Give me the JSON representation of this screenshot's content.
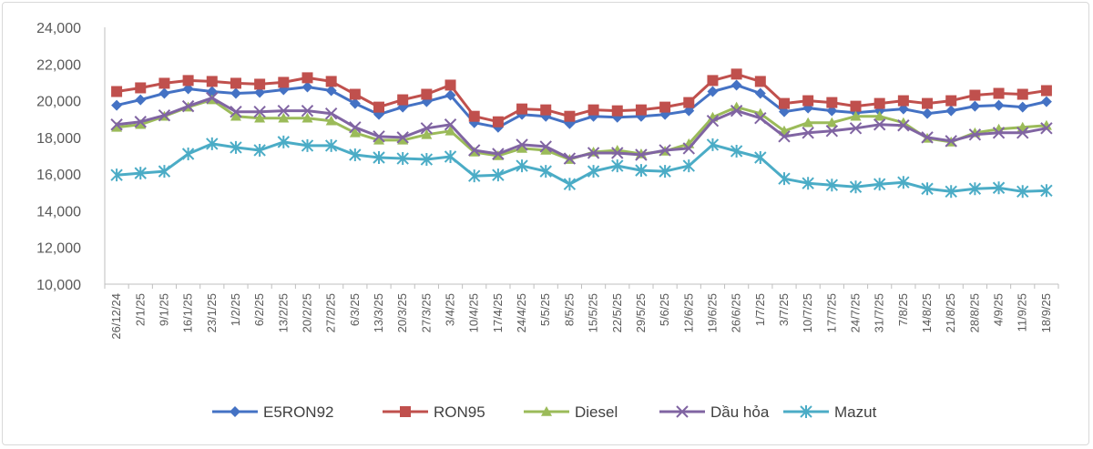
{
  "chart_data": {
    "type": "line",
    "title": "",
    "xlabel": "",
    "ylabel": "",
    "ylim": [
      10000,
      24000
    ],
    "yticks": [
      "10,000",
      "12,000",
      "14,000",
      "16,000",
      "18,000",
      "20,000",
      "22,000",
      "24,000"
    ],
    "ytick_values": [
      10000,
      12000,
      14000,
      16000,
      18000,
      20000,
      22000,
      24000
    ],
    "grid": false,
    "legend_position": "bottom",
    "categories": [
      "26/12/24",
      "2/1/25",
      "9/1/25",
      "16/1/25",
      "23/1/25",
      "1/2/25",
      "6/2/25",
      "13/2/25",
      "20/2/25",
      "27/2/25",
      "6/3/25",
      "13/3/25",
      "20/3/25",
      "27/3/25",
      "3/4/25",
      "10/4/25",
      "17/4/25",
      "24/4/25",
      "5/5/25",
      "8/5/25",
      "15/5/25",
      "22/5/25",
      "29/5/25",
      "5/6/25",
      "12/6/25",
      "19/6/25",
      "26/6/25",
      "1/7/25",
      "3/7/25",
      "10/7/25",
      "17/7/25",
      "24/7/25",
      "31/7/25",
      "7/8/25",
      "14/8/25",
      "21/8/25",
      "28/8/25",
      "4/9/25",
      "11/9/25",
      "18/9/25"
    ],
    "series": [
      {
        "name": "E5RON92",
        "color": "#4472c4",
        "marker": "diamond",
        "values": [
          19750,
          20050,
          20400,
          20650,
          20500,
          20400,
          20450,
          20600,
          20750,
          20550,
          19850,
          19250,
          19650,
          19950,
          20300,
          18800,
          18550,
          19250,
          19150,
          18750,
          19150,
          19100,
          19150,
          19250,
          19450,
          20500,
          20850,
          20400,
          19400,
          19600,
          19450,
          19350,
          19450,
          19550,
          19300,
          19450,
          19700,
          19750,
          19650,
          19950
        ]
      },
      {
        "name": "RON95",
        "color": "#c0504d",
        "marker": "square",
        "values": [
          20500,
          20700,
          20950,
          21100,
          21050,
          20950,
          20900,
          21000,
          21250,
          21050,
          20350,
          19650,
          20050,
          20350,
          20850,
          19150,
          18850,
          19550,
          19500,
          19150,
          19500,
          19450,
          19500,
          19650,
          19900,
          21100,
          21450,
          21050,
          19850,
          20000,
          19900,
          19700,
          19850,
          20000,
          19850,
          20000,
          20300,
          20400,
          20350,
          20550
        ]
      },
      {
        "name": "Diesel",
        "color": "#9bbb59",
        "marker": "triangle",
        "values": [
          18550,
          18700,
          19150,
          19650,
          20050,
          19150,
          19050,
          19050,
          19050,
          18900,
          18250,
          17850,
          17850,
          18150,
          18350,
          17200,
          17000,
          17400,
          17300,
          16800,
          17200,
          17300,
          17100,
          17250,
          17650,
          19100,
          19650,
          19300,
          18350,
          18800,
          18800,
          19150,
          19150,
          18800,
          17950,
          17750,
          18250,
          18450,
          18550,
          18650
        ]
      },
      {
        "name": "Dầu hỏa",
        "color": "#8064a2",
        "marker": "x",
        "values": [
          18700,
          18850,
          19200,
          19700,
          20150,
          19400,
          19400,
          19450,
          19450,
          19300,
          18550,
          18050,
          18000,
          18500,
          18700,
          17300,
          17100,
          17600,
          17500,
          16850,
          17150,
          17150,
          17050,
          17300,
          17400,
          18900,
          19450,
          19050,
          18050,
          18250,
          18350,
          18500,
          18700,
          18650,
          18000,
          17800,
          18150,
          18250,
          18250,
          18500
        ]
      },
      {
        "name": "Mazut",
        "color": "#4bacc6",
        "marker": "asterisk",
        "values": [
          15950,
          16050,
          16150,
          17100,
          17650,
          17450,
          17300,
          17750,
          17550,
          17550,
          17050,
          16900,
          16850,
          16800,
          16950,
          15900,
          15950,
          16450,
          16150,
          15450,
          16150,
          16450,
          16200,
          16150,
          16450,
          17600,
          17250,
          16900,
          15750,
          15500,
          15400,
          15300,
          15450,
          15550,
          15200,
          15050,
          15200,
          15250,
          15050,
          15100
        ]
      }
    ]
  }
}
